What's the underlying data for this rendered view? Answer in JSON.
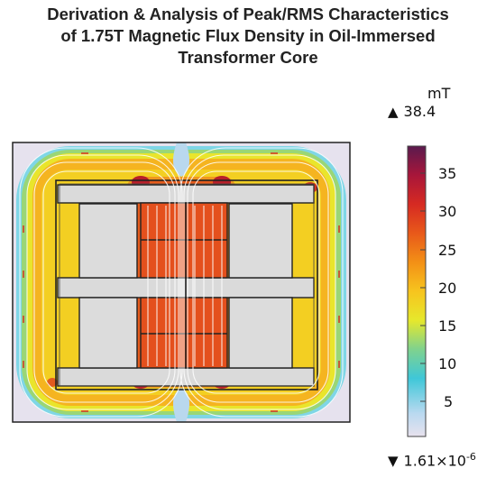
{
  "title": {
    "line1": "Derivation & Analysis of Peak/RMS Characteristics",
    "line2": "of 1.75T Magnetic Flux Density in Oil-Immersed",
    "line3": "Transformer Core"
  },
  "colorbar": {
    "unit": "mT",
    "max_symbol": "▲",
    "max_value": "38.4",
    "min_symbol": "▼",
    "min_value": "1.61×10",
    "min_exponent": "-6",
    "ticks": [
      "35",
      "30",
      "25",
      "20",
      "15",
      "10",
      "5"
    ],
    "stops": [
      "#e8e2ee",
      "#8ad6ee",
      "#3fc7d8",
      "#7fd28e",
      "#e6e82c",
      "#f7c41e",
      "#f39016",
      "#e8591a",
      "#d62a22",
      "#a8163a",
      "#5a1a4e"
    ]
  },
  "field": {
    "outer_color": "#eae6f0",
    "core_hot": "#e8521e",
    "yoke_warm": "#f0a81e",
    "coil_color": "#dcdcdc"
  }
}
